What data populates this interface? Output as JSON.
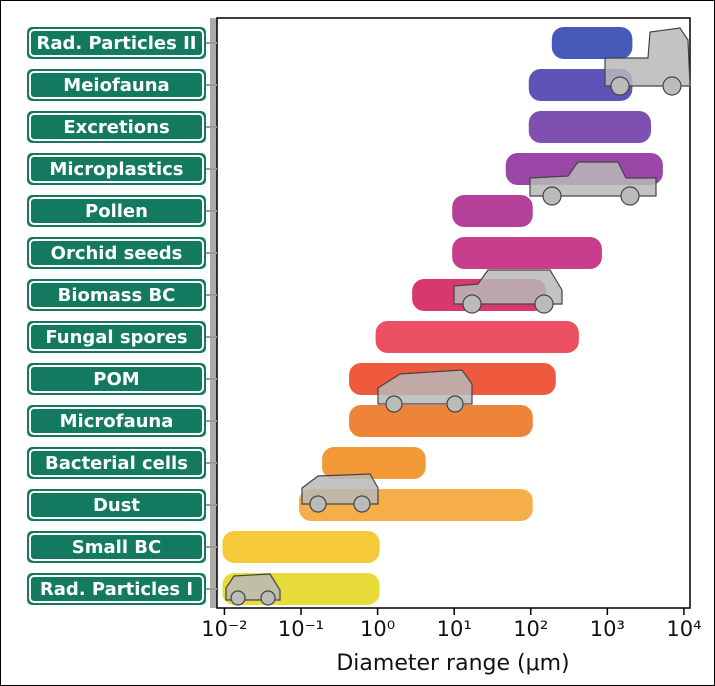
{
  "chart_data": {
    "type": "range-bar",
    "x_label": "Diameter range (μm)",
    "xscale": "log",
    "xlim": [
      0.008,
      12000
    ],
    "xticks": [
      {
        "value": 0.01,
        "label": "10⁻²"
      },
      {
        "value": 0.1,
        "label": "10⁻¹"
      },
      {
        "value": 1,
        "label": "10⁰"
      },
      {
        "value": 10,
        "label": "10¹"
      },
      {
        "value": 100,
        "label": "10²"
      },
      {
        "value": 1000,
        "label": "10³"
      },
      {
        "value": 10000,
        "label": "10⁴"
      }
    ],
    "categories": [
      "Rad. Particles II",
      "Meiofauna",
      "Excretions",
      "Microplastics",
      "Pollen",
      "Orchid seeds",
      "Biomass BC",
      "Fungal spores",
      "POM",
      "Microfauna",
      "Bacterial cells",
      "Dust",
      "Small BC",
      "Rad. Particles I"
    ],
    "ranges": [
      [
        200,
        2000
      ],
      [
        100,
        2000
      ],
      [
        100,
        3500
      ],
      [
        50,
        5000
      ],
      [
        10,
        100
      ],
      [
        10,
        800
      ],
      [
        3,
        150
      ],
      [
        1,
        400
      ],
      [
        0.45,
        200
      ],
      [
        0.45,
        100
      ],
      [
        0.2,
        4
      ],
      [
        0.1,
        100
      ],
      [
        0.01,
        1
      ],
      [
        0.01,
        1
      ]
    ],
    "colors": [
      "#4659b9",
      "#5e54b8",
      "#7f50b2",
      "#9a47a8",
      "#b5409a",
      "#c93e8c",
      "#d8396c",
      "#ec5063",
      "#ef5a3e",
      "#ee8438",
      "#f39a38",
      "#f6ae48",
      "#f5c93a",
      "#e8dc3a"
    ],
    "sign_color": "#137a5f"
  }
}
